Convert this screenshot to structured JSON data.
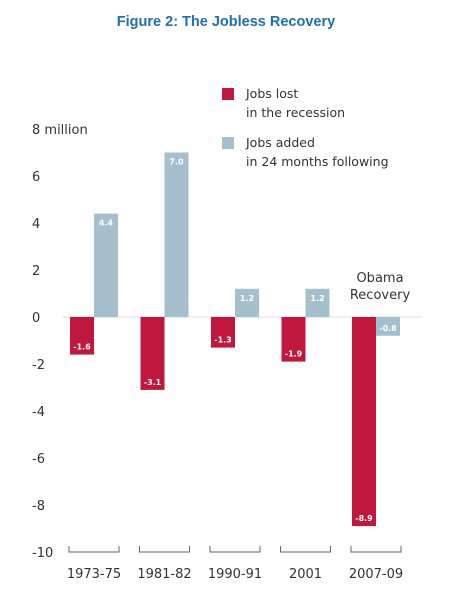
{
  "chart_data": {
    "type": "bar",
    "title": "Figure 2: The Jobless Recovery",
    "categories": [
      "1973-75",
      "1981-82",
      "1990-91",
      "2001",
      "2007-09"
    ],
    "series": [
      {
        "name": "Jobs lost in the recession",
        "name_lines": [
          "Jobs lost",
          "in the recession"
        ],
        "color": "#c0173f",
        "values": [
          -1.6,
          -3.1,
          -1.3,
          -1.9,
          -8.9
        ],
        "labels": [
          "-1.6",
          "-3.1",
          "-1.3",
          "-1.9",
          "-8.9"
        ]
      },
      {
        "name": "Jobs added in 24 months following",
        "name_lines": [
          "Jobs added",
          "in 24 months following"
        ],
        "color": "#a5bfcd",
        "values": [
          4.4,
          7.0,
          1.2,
          1.2,
          -0.8
        ],
        "labels": [
          "4.4",
          "7.0",
          "1.2",
          "1.2",
          "-0.8"
        ]
      }
    ],
    "ylim": [
      -10,
      8
    ],
    "yticks": [
      8,
      6,
      4,
      2,
      0,
      -2,
      -4,
      -6,
      -8,
      -10
    ],
    "ytick_labels": [
      "8 million",
      "6",
      "4",
      "2",
      "0",
      "-2",
      "-4",
      "-6",
      "-8",
      "-10"
    ],
    "annotation": {
      "lines": [
        "Obama",
        "Recovery"
      ],
      "category": "2007-09"
    },
    "legend_position": "top-right",
    "grid": false,
    "title_color": "#1f6fa8",
    "axis_color": "#666666"
  }
}
